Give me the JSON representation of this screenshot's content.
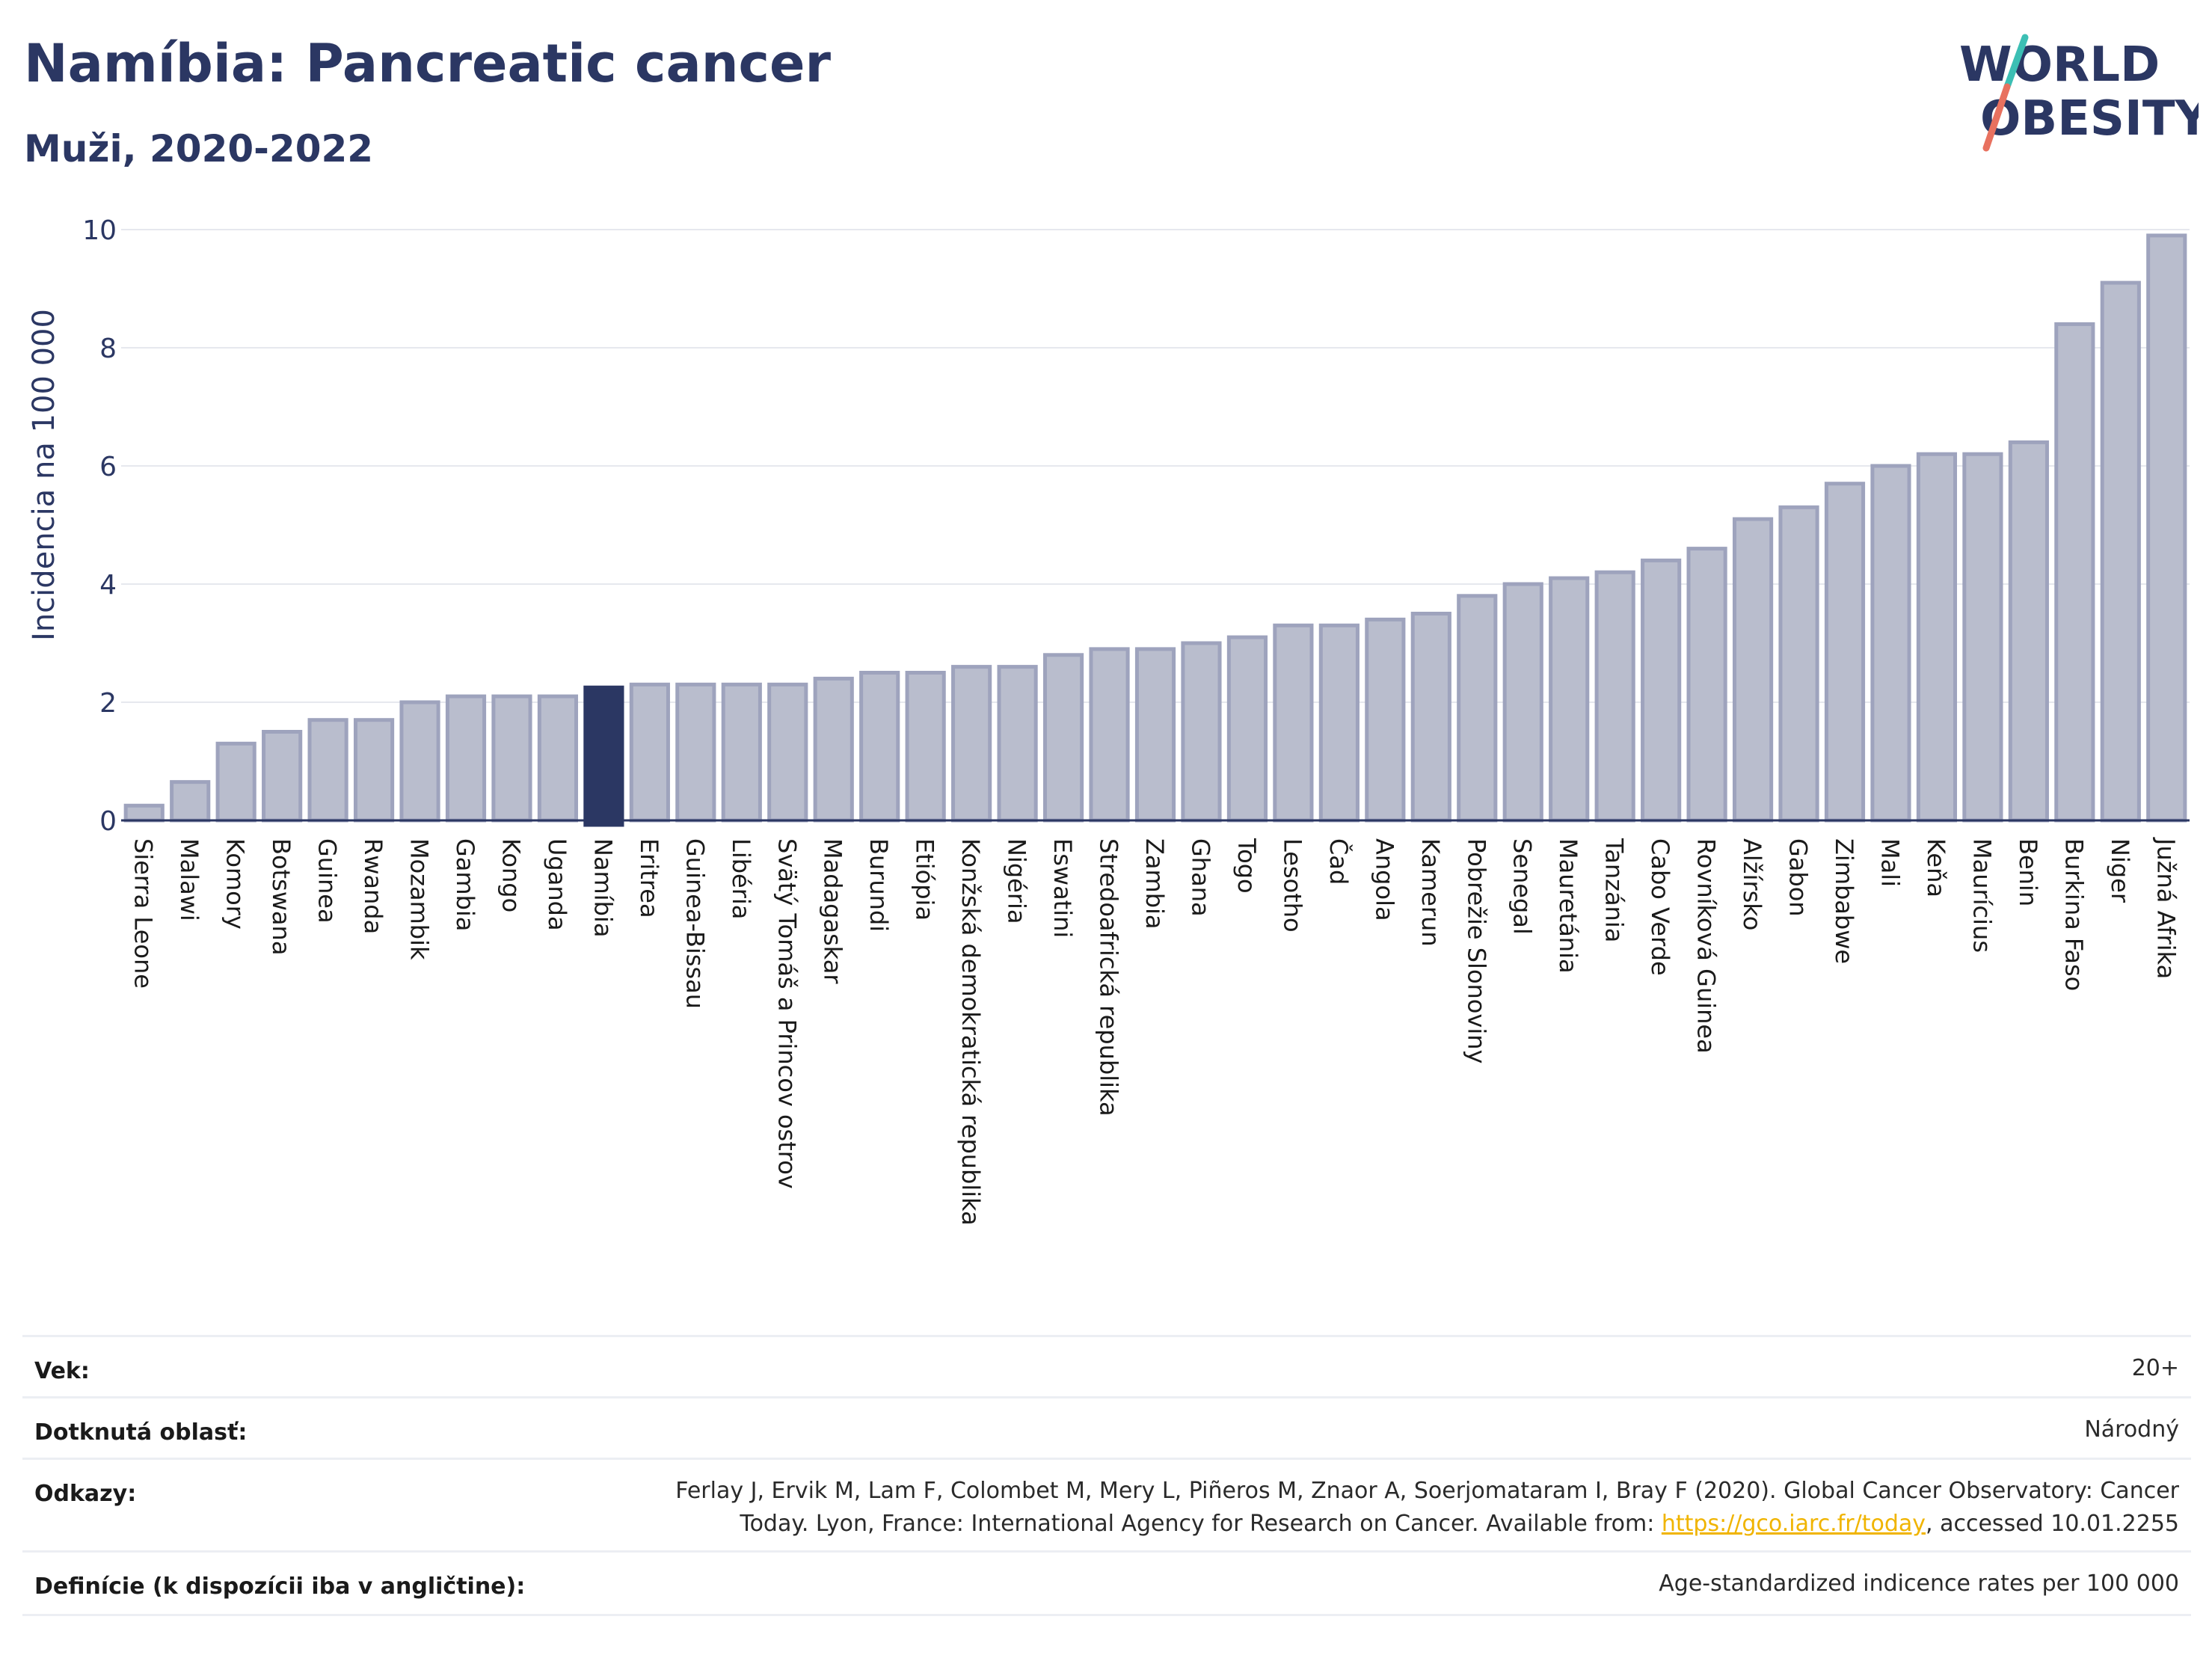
{
  "header": {
    "title": "Namíbia: Pancreatic cancer",
    "subtitle": "Muži, 2020-2022"
  },
  "logo": {
    "line1": "WORLD",
    "line2": "OBESITY",
    "icon": "world-obesity-logo"
  },
  "colors": {
    "bar": "#b9bdcd",
    "bar_border": "#9ea3bd",
    "highlight": "#2b3763",
    "grid": "#e6e8ee",
    "text": "#2b3763",
    "link": "#f0b400"
  },
  "chart_data": {
    "type": "bar",
    "ylabel": "Incidencia na 100 000",
    "ylim": [
      0,
      10
    ],
    "yticks": [
      0,
      2,
      4,
      6,
      8,
      10
    ],
    "grid": true,
    "highlight": "Namíbia",
    "categories": [
      "Sierra Leone",
      "Malawi",
      "Komory",
      "Botswana",
      "Guinea",
      "Rwanda",
      "Mozambik",
      "Gambia",
      "Kongo",
      "Uganda",
      "Namíbia",
      "Eritrea",
      "Guinea-Bissau",
      "Libéria",
      "Svätý Tomáš a Princov ostrov",
      "Madagaskar",
      "Burundi",
      "Etiópia",
      "Konžská demokratická republika",
      "Nigéria",
      "Eswatini",
      "Stredoafrická republika",
      "Zambia",
      "Ghana",
      "Togo",
      "Lesotho",
      "Čad",
      "Angola",
      "Kamerun",
      "Pobrežie Slonoviny",
      "Senegal",
      "Mauretánia",
      "Tanzánia",
      "Cabo Verde",
      "Rovníková Guinea",
      "Alžírsko",
      "Gabon",
      "Zimbabwe",
      "Mali",
      "Keňa",
      "Maurícius",
      "Benin",
      "Burkina Faso",
      "Niger",
      "Južná Afrika"
    ],
    "values": [
      0.25,
      0.65,
      1.3,
      1.5,
      1.7,
      1.7,
      2.0,
      2.1,
      2.1,
      2.1,
      2.25,
      2.3,
      2.3,
      2.3,
      2.3,
      2.4,
      2.5,
      2.5,
      2.6,
      2.6,
      2.8,
      2.9,
      2.9,
      3.0,
      3.1,
      3.3,
      3.3,
      3.4,
      3.5,
      3.8,
      4.0,
      4.1,
      4.2,
      4.4,
      4.6,
      5.1,
      5.3,
      5.7,
      6.0,
      6.2,
      6.2,
      6.4,
      8.4,
      9.1,
      9.9
    ]
  },
  "meta": {
    "age_label": "Vek:",
    "age_value": "20+",
    "area_label": "Dotknutá oblasť:",
    "area_value": "Národný",
    "refs_label": "Odkazy:",
    "refs_line1": "Ferlay J, Ervik M, Lam F, Colombet M, Mery L, Piñeros M, Znaor A, Soerjomataram I, Bray F (2020). Global Cancer Observatory: Cancer",
    "refs_line2a": "Today. Lyon, France: International Agency for Research on Cancer. Available from: ",
    "refs_link": "https://gco.iarc.fr/today",
    "refs_line2b": ", accessed 10.01.2255",
    "def_label": "Definície (k dispozícii iba v angličtine):",
    "def_value": "Age-standardized indicence rates per 100 000"
  }
}
